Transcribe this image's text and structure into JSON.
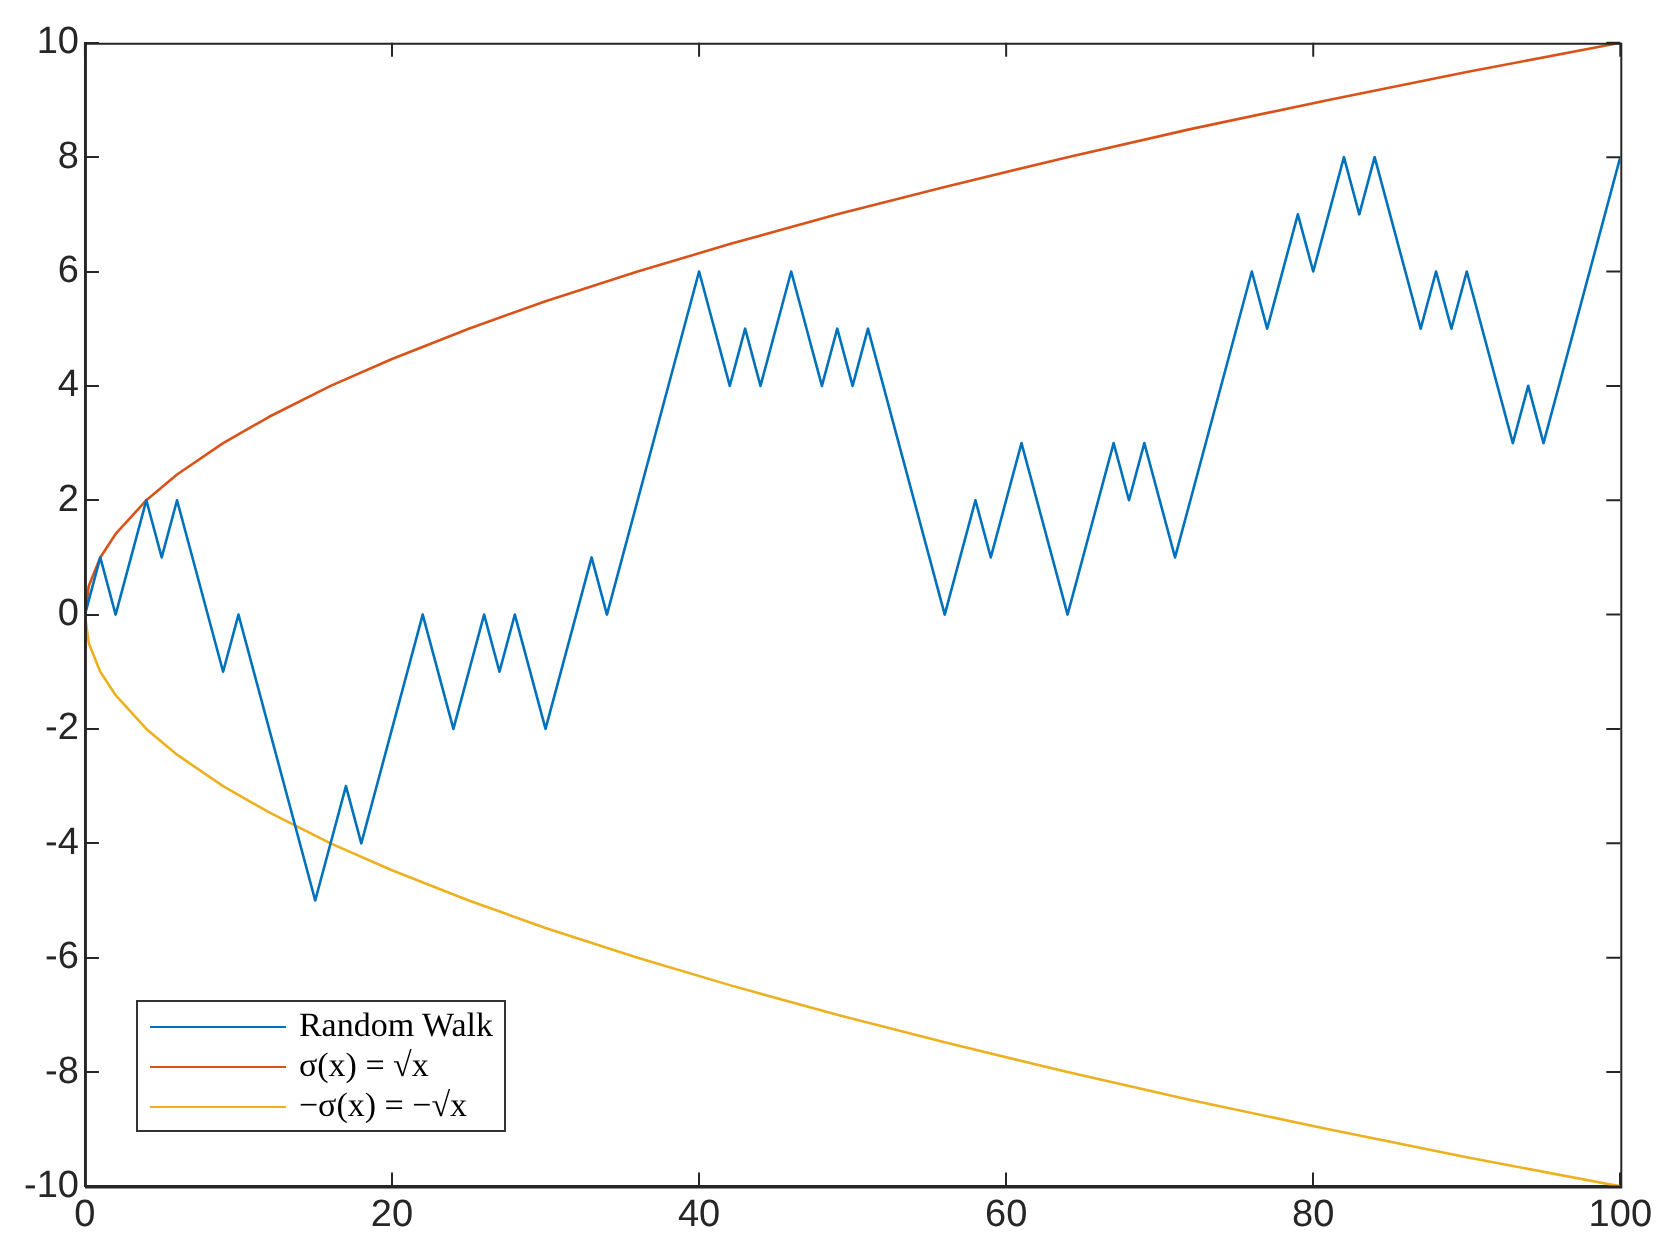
{
  "chart_data": {
    "type": "line",
    "xlim": [
      0,
      100
    ],
    "ylim": [
      -10,
      10
    ],
    "xticks": [
      0,
      20,
      40,
      60,
      80,
      100
    ],
    "yticks": [
      -10,
      -8,
      -6,
      -4,
      -2,
      0,
      2,
      4,
      6,
      8,
      10
    ],
    "grid": false,
    "legend": "bottom left",
    "marker": "none",
    "line_style": "solid",
    "series": [
      {
        "name": "Random Walk",
        "color": "#0072bd",
        "x": [
          0,
          1,
          2,
          4,
          5,
          6,
          9,
          10,
          15,
          17,
          18,
          22,
          24,
          26,
          27,
          28,
          30,
          33,
          34,
          40,
          42,
          43,
          44,
          46,
          48,
          49,
          50,
          51,
          56,
          58,
          59,
          61,
          64,
          67,
          68,
          69,
          71,
          76,
          77,
          79,
          80,
          82,
          83,
          84,
          87,
          88,
          89,
          90,
          93,
          94,
          95,
          100
        ],
        "values": [
          0,
          1,
          0,
          2,
          1,
          2,
          -1,
          0,
          -5,
          -3,
          -4,
          0,
          -2,
          0,
          -1,
          0,
          -2,
          1,
          0,
          6,
          4,
          5,
          4,
          6,
          4,
          5,
          4,
          5,
          0,
          2,
          1,
          3,
          0,
          3,
          2,
          3,
          1,
          6,
          5,
          7,
          6,
          8,
          7,
          8,
          5,
          6,
          5,
          6,
          3,
          4,
          3,
          8
        ]
      },
      {
        "name": "σ(x) = √x",
        "color": "#d95319",
        "x": [
          0,
          0.25,
          1,
          2,
          4,
          6,
          9,
          12,
          16,
          20,
          25,
          30,
          36,
          42,
          49,
          56,
          64,
          72,
          81,
          90,
          100
        ],
        "values": [
          0,
          0.5,
          1,
          1.41,
          2,
          2.45,
          3,
          3.46,
          4,
          4.47,
          5,
          5.48,
          6,
          6.48,
          7,
          7.48,
          8,
          8.49,
          9,
          9.49,
          10
        ]
      },
      {
        "name": "−σ(x) = −√x",
        "color": "#edb120",
        "x": [
          0,
          0.25,
          1,
          2,
          4,
          6,
          9,
          12,
          16,
          20,
          25,
          30,
          36,
          42,
          49,
          56,
          64,
          72,
          81,
          90,
          100
        ],
        "values": [
          0,
          -0.5,
          -1,
          -1.41,
          -2,
          -2.45,
          -3,
          -3.46,
          -4,
          -4.47,
          -5,
          -5.48,
          -6,
          -6.48,
          -7,
          -7.48,
          -8,
          -8.49,
          -9,
          -9.49,
          -10
        ]
      }
    ]
  }
}
